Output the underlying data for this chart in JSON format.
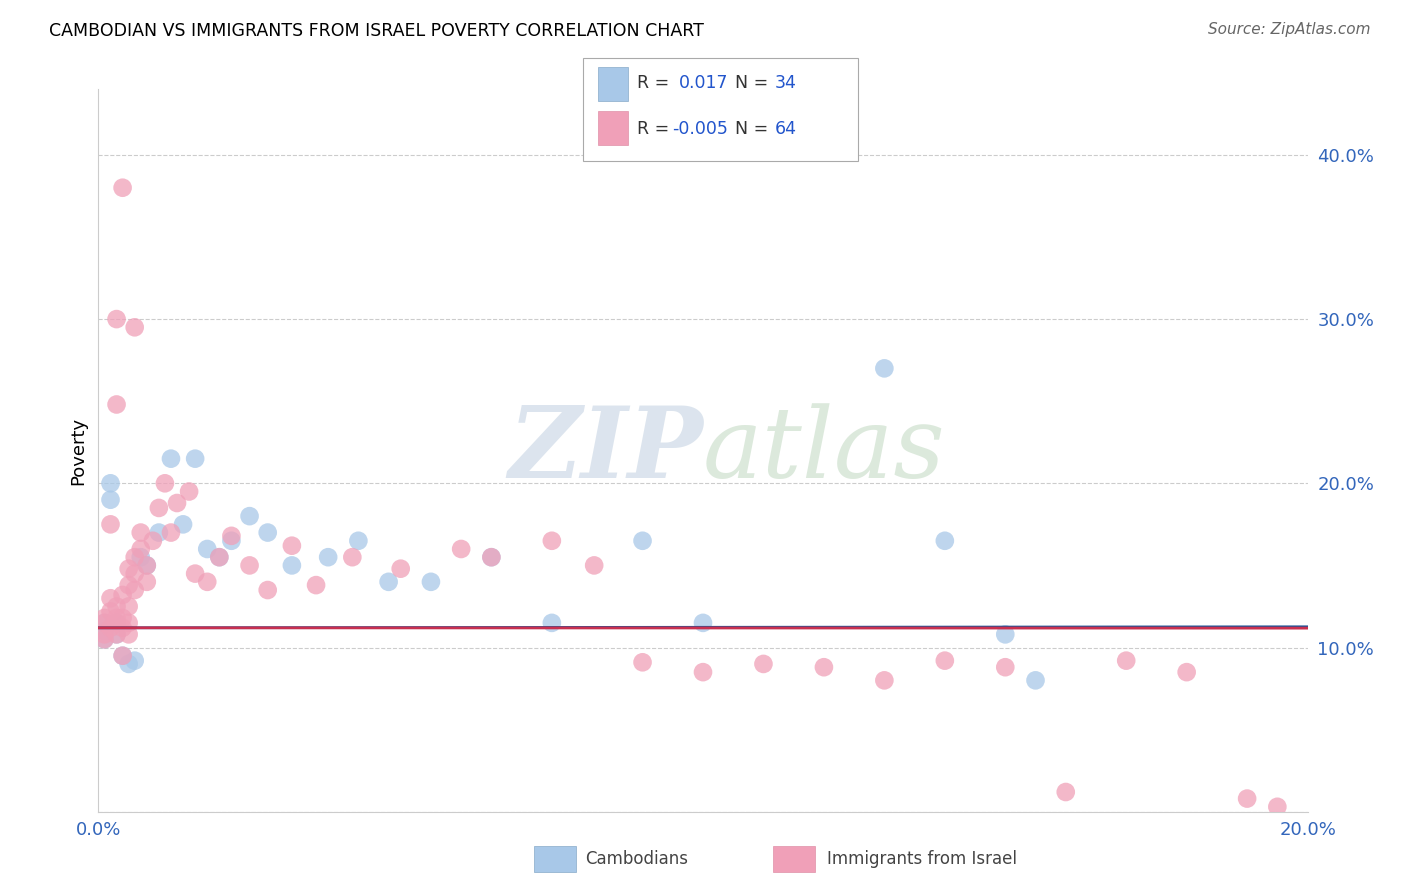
{
  "title": "CAMBODIAN VS IMMIGRANTS FROM ISRAEL POVERTY CORRELATION CHART",
  "source": "Source: ZipAtlas.com",
  "ylabel": "Poverty",
  "xlim": [
    0.0,
    0.2
  ],
  "ylim": [
    0.0,
    0.44
  ],
  "x_ticks": [
    0.0,
    0.05,
    0.1,
    0.15,
    0.2
  ],
  "x_tick_labels": [
    "0.0%",
    "",
    "",
    "",
    "20.0%"
  ],
  "y_ticks": [
    0.0,
    0.1,
    0.2,
    0.3,
    0.4
  ],
  "y_tick_labels": [
    "",
    "10.0%",
    "20.0%",
    "30.0%",
    "40.0%"
  ],
  "blue_color": "#a8c8e8",
  "pink_color": "#f0a0b8",
  "blue_line_color": "#1a5296",
  "pink_line_color": "#c83050",
  "watermark_zip": "ZIP",
  "watermark_atlas": "atlas",
  "blue_x": [
    0.001,
    0.001,
    0.001,
    0.002,
    0.002,
    0.003,
    0.003,
    0.004,
    0.005,
    0.006,
    0.007,
    0.008,
    0.01,
    0.012,
    0.014,
    0.016,
    0.018,
    0.02,
    0.022,
    0.025,
    0.028,
    0.032,
    0.038,
    0.043,
    0.048,
    0.055,
    0.065,
    0.075,
    0.09,
    0.1,
    0.13,
    0.14,
    0.15,
    0.155
  ],
  "blue_y": [
    0.11,
    0.115,
    0.105,
    0.19,
    0.2,
    0.115,
    0.108,
    0.095,
    0.09,
    0.092,
    0.155,
    0.15,
    0.17,
    0.215,
    0.175,
    0.215,
    0.16,
    0.155,
    0.165,
    0.18,
    0.17,
    0.15,
    0.155,
    0.165,
    0.14,
    0.14,
    0.155,
    0.115,
    0.165,
    0.115,
    0.27,
    0.165,
    0.108,
    0.08
  ],
  "pink_x": [
    0.001,
    0.001,
    0.001,
    0.001,
    0.002,
    0.002,
    0.002,
    0.003,
    0.003,
    0.003,
    0.003,
    0.004,
    0.004,
    0.004,
    0.004,
    0.005,
    0.005,
    0.005,
    0.006,
    0.006,
    0.006,
    0.007,
    0.007,
    0.008,
    0.008,
    0.009,
    0.01,
    0.011,
    0.012,
    0.013,
    0.015,
    0.016,
    0.018,
    0.02,
    0.022,
    0.025,
    0.028,
    0.032,
    0.036,
    0.042,
    0.05,
    0.06,
    0.065,
    0.075,
    0.082,
    0.09,
    0.1,
    0.11,
    0.12,
    0.13,
    0.14,
    0.15,
    0.16,
    0.17,
    0.18,
    0.19,
    0.195,
    0.002,
    0.003,
    0.003,
    0.004,
    0.005,
    0.005,
    0.006
  ],
  "pink_y": [
    0.115,
    0.108,
    0.118,
    0.105,
    0.112,
    0.122,
    0.13,
    0.125,
    0.115,
    0.118,
    0.108,
    0.132,
    0.118,
    0.112,
    0.095,
    0.125,
    0.115,
    0.108,
    0.155,
    0.145,
    0.135,
    0.17,
    0.16,
    0.15,
    0.14,
    0.165,
    0.185,
    0.2,
    0.17,
    0.188,
    0.195,
    0.145,
    0.14,
    0.155,
    0.168,
    0.15,
    0.135,
    0.162,
    0.138,
    0.155,
    0.148,
    0.16,
    0.155,
    0.165,
    0.15,
    0.091,
    0.085,
    0.09,
    0.088,
    0.08,
    0.092,
    0.088,
    0.012,
    0.092,
    0.085,
    0.008,
    0.003,
    0.175,
    0.248,
    0.3,
    0.38,
    0.148,
    0.138,
    0.295
  ]
}
